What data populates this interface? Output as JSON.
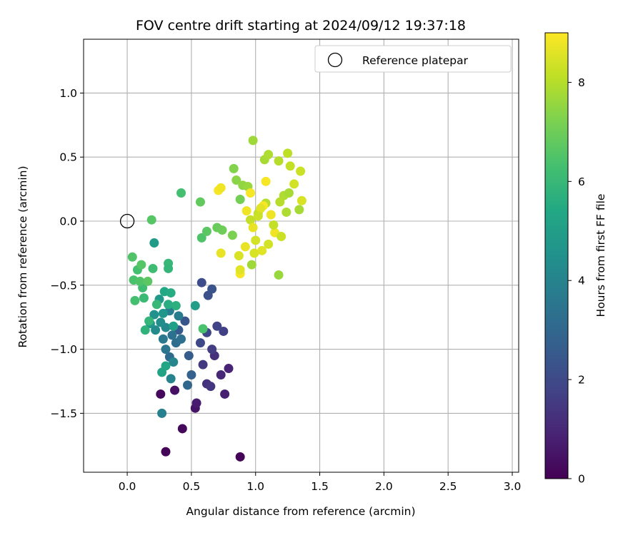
{
  "chart_data": {
    "type": "scatter",
    "title": "FOV centre drift starting at 2024/09/12 19:37:18",
    "xlabel": "Angular distance from reference (arcmin)",
    "ylabel": "Rotation from reference (arcmin)",
    "xlim": [
      -0.34,
      3.05
    ],
    "ylim": [
      -1.96,
      1.42
    ],
    "xticks": [
      "0.0",
      "0.5",
      "1.0",
      "1.5",
      "2.0",
      "2.5",
      "3.0"
    ],
    "yticks": [
      "−1.5",
      "−1.0",
      "−0.5",
      "0.0",
      "0.5",
      "1.0"
    ],
    "xtick_values": [
      0,
      0.5,
      1.0,
      1.5,
      2.0,
      2.5,
      3.0
    ],
    "ytick_values": [
      -1.5,
      -1.0,
      -0.5,
      0.0,
      0.5,
      1.0
    ],
    "grid": true,
    "colormap": "viridis",
    "colorbar": {
      "label": "Hours from first FF file",
      "range": [
        0,
        9
      ],
      "ticks": [
        "0",
        "2",
        "4",
        "6",
        "8"
      ],
      "tick_values": [
        0,
        2,
        4,
        6,
        8
      ]
    },
    "legend": {
      "placement": "top-right",
      "entries": [
        "Reference platepar"
      ]
    },
    "reference": {
      "x": 0.0,
      "y": 0.0
    },
    "points": [
      [
        0.3,
        -1.8,
        0.1
      ],
      [
        0.88,
        -1.84,
        0.1
      ],
      [
        0.43,
        -1.62,
        0.2
      ],
      [
        0.26,
        -1.35,
        0.2
      ],
      [
        0.37,
        -1.32,
        0.4
      ],
      [
        0.53,
        -1.46,
        0.5
      ],
      [
        0.54,
        -1.42,
        0.7
      ],
      [
        0.76,
        -1.35,
        0.8
      ],
      [
        0.79,
        -1.15,
        0.9
      ],
      [
        0.73,
        -1.2,
        1.0
      ],
      [
        0.68,
        -1.05,
        1.2
      ],
      [
        0.62,
        -1.27,
        1.3
      ],
      [
        0.65,
        -1.29,
        1.4
      ],
      [
        0.59,
        -1.12,
        1.5
      ],
      [
        0.66,
        -1.0,
        1.6
      ],
      [
        0.75,
        -0.86,
        1.7
      ],
      [
        0.7,
        -0.82,
        1.8
      ],
      [
        0.62,
        -0.87,
        1.9
      ],
      [
        0.57,
        -0.95,
        2.0
      ],
      [
        0.58,
        -0.48,
        2.1
      ],
      [
        0.63,
        -0.58,
        2.2
      ],
      [
        0.66,
        -0.53,
        2.3
      ],
      [
        0.45,
        -0.78,
        2.4
      ],
      [
        0.4,
        -0.85,
        2.5
      ],
      [
        0.48,
        -1.05,
        2.6
      ],
      [
        0.5,
        -1.2,
        2.8
      ],
      [
        0.47,
        -1.28,
        3.0
      ],
      [
        0.33,
        -1.06,
        3.1
      ],
      [
        0.38,
        -0.95,
        3.2
      ],
      [
        0.42,
        -0.92,
        3.3
      ],
      [
        0.35,
        -0.89,
        3.4
      ],
      [
        0.3,
        -1.0,
        3.5
      ],
      [
        0.28,
        -0.92,
        3.6
      ],
      [
        0.4,
        -0.74,
        3.7
      ],
      [
        0.33,
        -0.7,
        3.8
      ],
      [
        0.27,
        -1.5,
        3.9
      ],
      [
        0.34,
        -1.23,
        4.0
      ],
      [
        0.36,
        -1.1,
        4.1
      ],
      [
        0.3,
        -0.83,
        4.2
      ],
      [
        0.22,
        -0.85,
        4.3
      ],
      [
        0.26,
        -0.79,
        4.4
      ],
      [
        0.21,
        -0.73,
        4.5
      ],
      [
        0.18,
        -0.8,
        4.6
      ],
      [
        0.28,
        -0.72,
        4.7
      ],
      [
        0.25,
        -0.61,
        4.8
      ],
      [
        0.21,
        -0.17,
        4.9
      ],
      [
        0.53,
        -0.66,
        5.0
      ],
      [
        0.36,
        -0.82,
        5.1
      ],
      [
        0.27,
        -1.18,
        5.2
      ],
      [
        0.3,
        -1.13,
        5.3
      ],
      [
        0.29,
        -0.55,
        5.4
      ],
      [
        0.34,
        -0.56,
        5.5
      ],
      [
        0.32,
        -0.65,
        5.6
      ],
      [
        0.38,
        -0.66,
        5.7
      ],
      [
        0.14,
        -0.85,
        5.8
      ],
      [
        0.17,
        -0.78,
        5.9
      ],
      [
        0.23,
        -0.65,
        6.0
      ],
      [
        0.13,
        -0.6,
        6.1
      ],
      [
        0.12,
        -0.52,
        6.2
      ],
      [
        0.08,
        -0.38,
        6.3
      ],
      [
        0.05,
        -0.46,
        6.4
      ],
      [
        0.1,
        -0.47,
        6.5
      ],
      [
        0.11,
        -0.34,
        6.6
      ],
      [
        0.16,
        -0.47,
        6.7
      ],
      [
        0.04,
        -0.28,
        6.5
      ],
      [
        0.06,
        -0.62,
        6.3
      ],
      [
        0.32,
        -0.33,
        6.0
      ],
      [
        0.32,
        -0.37,
        5.9
      ],
      [
        0.2,
        -0.37,
        6.2
      ],
      [
        0.59,
        -0.84,
        6.4
      ],
      [
        0.19,
        0.01,
        6.6
      ],
      [
        0.42,
        0.22,
        6.3
      ],
      [
        0.57,
        0.15,
        6.8
      ],
      [
        0.58,
        -0.13,
        6.5
      ],
      [
        0.62,
        -0.08,
        6.7
      ],
      [
        0.7,
        -0.05,
        6.9
      ],
      [
        0.74,
        -0.07,
        7.0
      ],
      [
        0.88,
        0.17,
        7.1
      ],
      [
        0.82,
        -0.11,
        7.2
      ],
      [
        0.83,
        0.41,
        7.3
      ],
      [
        0.85,
        0.32,
        7.4
      ],
      [
        0.9,
        0.28,
        7.5
      ],
      [
        0.94,
        0.27,
        7.6
      ],
      [
        0.98,
        0.63,
        7.7
      ],
      [
        1.07,
        0.48,
        7.8
      ],
      [
        1.1,
        0.52,
        7.9
      ],
      [
        1.18,
        0.47,
        8.0
      ],
      [
        1.25,
        0.53,
        8.1
      ],
      [
        1.27,
        0.43,
        8.2
      ],
      [
        1.35,
        0.39,
        8.3
      ],
      [
        1.3,
        0.29,
        8.4
      ],
      [
        1.36,
        0.16,
        8.5
      ],
      [
        1.34,
        0.09,
        7.8
      ],
      [
        1.18,
        -0.42,
        7.6
      ],
      [
        1.22,
        0.2,
        7.9
      ],
      [
        1.08,
        0.14,
        8.0
      ],
      [
        1.02,
        0.06,
        8.1
      ],
      [
        0.96,
        0.01,
        8.2
      ],
      [
        1.0,
        -0.15,
        8.4
      ],
      [
        1.05,
        -0.23,
        8.6
      ],
      [
        0.87,
        -0.27,
        8.5
      ],
      [
        0.92,
        -0.2,
        8.7
      ],
      [
        0.97,
        -0.34,
        7.7
      ],
      [
        1.15,
        -0.09,
        8.8
      ],
      [
        1.12,
        0.05,
        8.8
      ],
      [
        1.06,
        0.12,
        8.9
      ],
      [
        1.08,
        0.31,
        8.9
      ],
      [
        0.96,
        0.22,
        8.9
      ],
      [
        0.93,
        0.08,
        8.8
      ],
      [
        0.98,
        -0.05,
        8.7
      ],
      [
        1.04,
        0.1,
        8.6
      ],
      [
        1.02,
        0.04,
        8.3
      ],
      [
        1.14,
        -0.03,
        8.2
      ],
      [
        1.19,
        0.15,
        8.0
      ],
      [
        1.24,
        0.07,
        7.9
      ],
      [
        1.26,
        0.22,
        7.8
      ],
      [
        0.71,
        0.24,
        8.9
      ],
      [
        0.73,
        0.26,
        8.8
      ],
      [
        0.73,
        -0.25,
        8.7
      ],
      [
        0.88,
        -0.41,
        8.9
      ],
      [
        0.88,
        -0.38,
        8.6
      ],
      [
        0.99,
        -0.25,
        8.5
      ],
      [
        1.1,
        -0.18,
        8.4
      ],
      [
        1.2,
        -0.12,
        8.3
      ]
    ]
  }
}
